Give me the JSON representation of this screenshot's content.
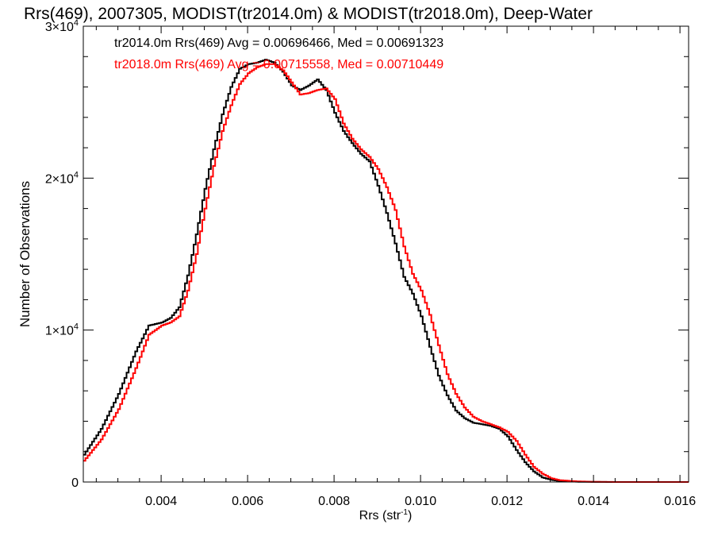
{
  "chart_data": {
    "type": "line",
    "title": "Rrs(469), 2007305, MODIST(tr2014.0m) & MODIST(tr2018.0m), Deep-Water",
    "xlabel_main": "Rrs (str",
    "xlabel_sup": "-1",
    "xlabel_close": ")",
    "ylabel": "Number of Observations",
    "xlim": [
      0.0022,
      0.0162
    ],
    "ylim": [
      0,
      30000
    ],
    "x_ticks": [
      {
        "value": 0.004,
        "label": "0.004"
      },
      {
        "value": 0.006,
        "label": "0.006"
      },
      {
        "value": 0.008,
        "label": "0.008"
      },
      {
        "value": 0.01,
        "label": "0.010"
      },
      {
        "value": 0.012,
        "label": "0.012"
      },
      {
        "value": 0.014,
        "label": "0.014"
      },
      {
        "value": 0.016,
        "label": "0.016"
      }
    ],
    "y_ticks": [
      {
        "value": 0,
        "label": "0",
        "sup": ""
      },
      {
        "value": 10000,
        "label": "1×10",
        "sup": "4"
      },
      {
        "value": 20000,
        "label": "2×10",
        "sup": "4"
      },
      {
        "value": 30000,
        "label": "3×10",
        "sup": "4"
      }
    ],
    "legend_entries": [
      {
        "text": "tr2014.0m Rrs(469) Avg = 0.00696466, Med = 0.00691323",
        "color": "#000000"
      },
      {
        "text": "tr2018.0m Rrs(469) Avg = 0.00715558, Med = 0.00710449",
        "color": "#ff0000"
      }
    ],
    "legend_position": "top-left",
    "series": [
      {
        "color": "#000000",
        "points": [
          [
            0.0022,
            1800
          ],
          [
            0.0026,
            3500
          ],
          [
            0.003,
            5800
          ],
          [
            0.0034,
            8600
          ],
          [
            0.0037,
            10300
          ],
          [
            0.004,
            10500
          ],
          [
            0.0042,
            10800
          ],
          [
            0.0044,
            11500
          ],
          [
            0.0046,
            13600
          ],
          [
            0.0048,
            16300
          ],
          [
            0.005,
            19300
          ],
          [
            0.0052,
            21900
          ],
          [
            0.0054,
            24200
          ],
          [
            0.0056,
            26000
          ],
          [
            0.0058,
            27200
          ],
          [
            0.006,
            27500
          ],
          [
            0.0062,
            27600
          ],
          [
            0.0064,
            27800
          ],
          [
            0.0066,
            27600
          ],
          [
            0.0068,
            27000
          ],
          [
            0.007,
            26100
          ],
          [
            0.0072,
            25800
          ],
          [
            0.0074,
            26100
          ],
          [
            0.0076,
            26500
          ],
          [
            0.0078,
            25800
          ],
          [
            0.008,
            24300
          ],
          [
            0.0082,
            23100
          ],
          [
            0.0084,
            22300
          ],
          [
            0.0086,
            21600
          ],
          [
            0.0088,
            21100
          ],
          [
            0.009,
            19500
          ],
          [
            0.0092,
            17700
          ],
          [
            0.0094,
            15700
          ],
          [
            0.0096,
            13500
          ],
          [
            0.0098,
            12400
          ],
          [
            0.01,
            10900
          ],
          [
            0.0102,
            8900
          ],
          [
            0.0104,
            7000
          ],
          [
            0.0106,
            5700
          ],
          [
            0.0108,
            4700
          ],
          [
            0.011,
            4200
          ],
          [
            0.0112,
            3900
          ],
          [
            0.0114,
            3800
          ],
          [
            0.0116,
            3700
          ],
          [
            0.0118,
            3500
          ],
          [
            0.012,
            3000
          ],
          [
            0.0122,
            2100
          ],
          [
            0.0124,
            1300
          ],
          [
            0.0126,
            700
          ],
          [
            0.0128,
            300
          ],
          [
            0.013,
            150
          ],
          [
            0.0132,
            60
          ],
          [
            0.0136,
            20
          ],
          [
            0.014,
            5
          ],
          [
            0.0146,
            0
          ],
          [
            0.0162,
            0
          ]
        ]
      },
      {
        "color": "#ff0000",
        "points": [
          [
            0.0022,
            1400
          ],
          [
            0.0026,
            2800
          ],
          [
            0.003,
            4800
          ],
          [
            0.0034,
            7500
          ],
          [
            0.0037,
            9700
          ],
          [
            0.004,
            10300
          ],
          [
            0.0042,
            10500
          ],
          [
            0.0044,
            10900
          ],
          [
            0.0046,
            12600
          ],
          [
            0.0048,
            15000
          ],
          [
            0.005,
            18000
          ],
          [
            0.0052,
            20800
          ],
          [
            0.0054,
            23100
          ],
          [
            0.0056,
            24800
          ],
          [
            0.0058,
            26200
          ],
          [
            0.006,
            26900
          ],
          [
            0.0062,
            27300
          ],
          [
            0.0064,
            27500
          ],
          [
            0.0066,
            27500
          ],
          [
            0.0068,
            27100
          ],
          [
            0.007,
            26300
          ],
          [
            0.0072,
            25500
          ],
          [
            0.0074,
            25600
          ],
          [
            0.0076,
            25800
          ],
          [
            0.0078,
            25900
          ],
          [
            0.008,
            25200
          ],
          [
            0.0082,
            23600
          ],
          [
            0.0084,
            22600
          ],
          [
            0.0086,
            21900
          ],
          [
            0.0088,
            21400
          ],
          [
            0.009,
            20600
          ],
          [
            0.0092,
            19400
          ],
          [
            0.0094,
            17900
          ],
          [
            0.0096,
            15500
          ],
          [
            0.0098,
            13700
          ],
          [
            0.01,
            12600
          ],
          [
            0.0102,
            11000
          ],
          [
            0.0104,
            9000
          ],
          [
            0.0106,
            7100
          ],
          [
            0.0108,
            5800
          ],
          [
            0.011,
            4900
          ],
          [
            0.0112,
            4300
          ],
          [
            0.0114,
            4000
          ],
          [
            0.0116,
            3800
          ],
          [
            0.0118,
            3600
          ],
          [
            0.012,
            3300
          ],
          [
            0.0122,
            2700
          ],
          [
            0.0124,
            1800
          ],
          [
            0.0126,
            1000
          ],
          [
            0.0128,
            550
          ],
          [
            0.013,
            250
          ],
          [
            0.0132,
            120
          ],
          [
            0.0136,
            40
          ],
          [
            0.014,
            10
          ],
          [
            0.0146,
            0
          ],
          [
            0.0162,
            0
          ]
        ]
      }
    ]
  }
}
